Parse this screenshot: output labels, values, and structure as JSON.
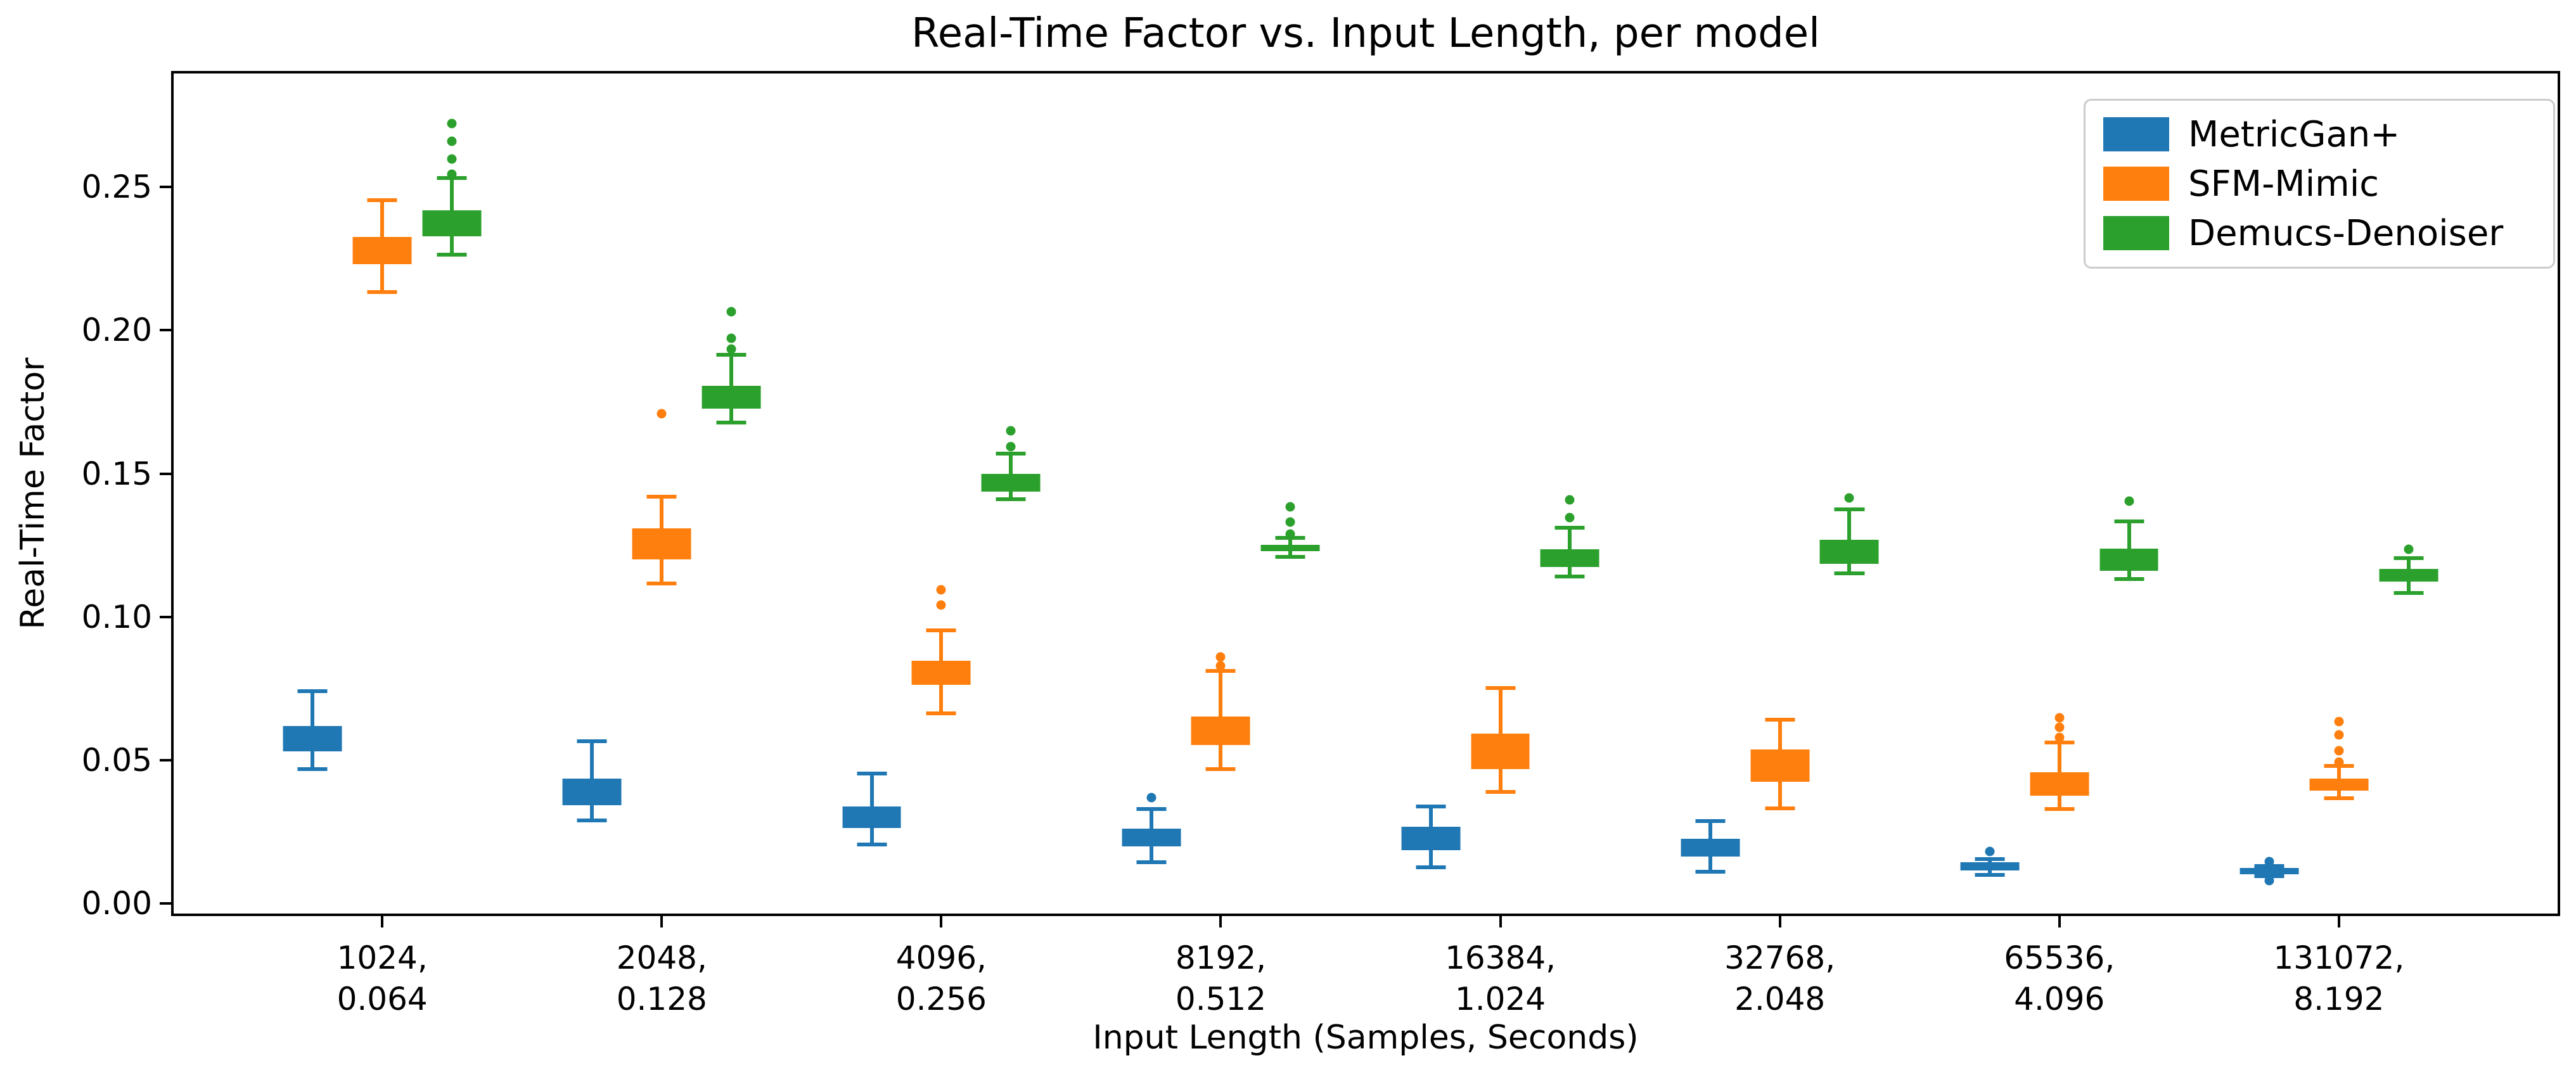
{
  "title": "Real-Time Factor vs. Input Length, per model",
  "axes": {
    "x_label": "Input Length (Samples, Seconds)",
    "y_label": "Real-Time Factor",
    "y_ticks": [
      {
        "label": "0.00",
        "value": 0.0
      },
      {
        "label": "0.05",
        "value": 0.05
      },
      {
        "label": "0.10",
        "value": 0.1
      },
      {
        "label": "0.15",
        "value": 0.15
      },
      {
        "label": "0.20",
        "value": 0.2
      },
      {
        "label": "0.25",
        "value": 0.25
      }
    ]
  },
  "legend": [
    {
      "label": "MetricGan+",
      "color": "#1f77b4"
    },
    {
      "label": "SFM-Mimic",
      "color": "#ff7f0e"
    },
    {
      "label": "Demucs-Denoiser",
      "color": "#2ca02c"
    }
  ],
  "chart_data": {
    "type": "boxplot",
    "title": "Real-Time Factor vs. Input Length, per model",
    "xlabel": "Input Length (Samples, Seconds)",
    "ylabel": "Real-Time Factor",
    "ylim": [
      -0.0035,
      0.2896
    ],
    "grid": false,
    "legend_position": "upper right",
    "categories": [
      {
        "samples": "1024",
        "seconds": "0.064",
        "label": "1024,\n0.064"
      },
      {
        "samples": "2048",
        "seconds": "0.128",
        "label": "2048,\n0.128"
      },
      {
        "samples": "4096",
        "seconds": "0.256",
        "label": "4096,\n0.256"
      },
      {
        "samples": "8192",
        "seconds": "0.512",
        "label": "8192,\n0.512"
      },
      {
        "samples": "16384",
        "seconds": "1.024",
        "label": "16384,\n1.024"
      },
      {
        "samples": "32768",
        "seconds": "2.048",
        "label": "32768,\n2.048"
      },
      {
        "samples": "65536",
        "seconds": "4.096",
        "label": "65536,\n4.096"
      },
      {
        "samples": "131072",
        "seconds": "8.192",
        "label": "131072,\n8.192"
      }
    ],
    "series": [
      {
        "name": "MetricGan+",
        "color": "#1f77b4",
        "boxes": [
          {
            "whislo": 0.047,
            "q1": 0.053,
            "q3": 0.062,
            "whishi": 0.074,
            "fliers": []
          },
          {
            "whislo": 0.029,
            "q1": 0.0343,
            "q3": 0.0435,
            "whishi": 0.0567,
            "fliers": []
          },
          {
            "whislo": 0.0207,
            "q1": 0.0264,
            "q3": 0.0338,
            "whishi": 0.0453,
            "fliers": []
          },
          {
            "whislo": 0.0145,
            "q1": 0.02,
            "q3": 0.0261,
            "whishi": 0.033,
            "fliers": [
              0.0369
            ]
          },
          {
            "whislo": 0.0127,
            "q1": 0.0185,
            "q3": 0.0268,
            "whishi": 0.0338,
            "fliers": []
          },
          {
            "whislo": 0.011,
            "q1": 0.0165,
            "q3": 0.0226,
            "whishi": 0.0288,
            "fliers": []
          },
          {
            "whislo": 0.01,
            "q1": 0.0116,
            "q3": 0.0145,
            "whishi": 0.0155,
            "fliers": [
              0.0182
            ]
          },
          {
            "whislo": 0.0095,
            "q1": 0.0101,
            "q3": 0.0125,
            "whishi": 0.013,
            "fliers": [
              0.0147,
              0.008
            ]
          }
        ]
      },
      {
        "name": "SFM-Mimic",
        "color": "#ff7f0e",
        "boxes": [
          {
            "whislo": 0.2134,
            "q1": 0.2231,
            "q3": 0.2326,
            "whishi": 0.2453,
            "fliers": []
          },
          {
            "whislo": 0.1116,
            "q1": 0.12,
            "q3": 0.1309,
            "whishi": 0.1419,
            "fliers": [
              0.1709
            ]
          },
          {
            "whislo": 0.0663,
            "q1": 0.0764,
            "q3": 0.0848,
            "whishi": 0.0953,
            "fliers": [
              0.1041,
              0.1094
            ]
          },
          {
            "whislo": 0.0468,
            "q1": 0.0553,
            "q3": 0.0652,
            "whishi": 0.0811,
            "fliers": [
              0.083,
              0.0861
            ]
          },
          {
            "whislo": 0.0389,
            "q1": 0.047,
            "q3": 0.0593,
            "whishi": 0.0751,
            "fliers": []
          },
          {
            "whislo": 0.0332,
            "q1": 0.0424,
            "q3": 0.0538,
            "whishi": 0.0641,
            "fliers": []
          },
          {
            "whislo": 0.033,
            "q1": 0.0376,
            "q3": 0.0459,
            "whishi": 0.0562,
            "fliers": [
              0.058,
              0.0615,
              0.0648
            ]
          },
          {
            "whislo": 0.0367,
            "q1": 0.0393,
            "q3": 0.0435,
            "whishi": 0.0479,
            "fliers": [
              0.0494,
              0.0534,
              0.0589,
              0.0635
            ]
          }
        ]
      },
      {
        "name": "Demucs-Denoiser",
        "color": "#2ca02c",
        "boxes": [
          {
            "whislo": 0.2264,
            "q1": 0.2327,
            "q3": 0.2418,
            "whishi": 0.2532,
            "fliers": [
              0.2545,
              0.2597,
              0.266,
              0.2722
            ]
          },
          {
            "whislo": 0.1677,
            "q1": 0.1727,
            "q3": 0.1806,
            "whishi": 0.1915,
            "fliers": [
              0.1935,
              0.1973,
              0.2065
            ]
          },
          {
            "whislo": 0.141,
            "q1": 0.1437,
            "q3": 0.15,
            "whishi": 0.157,
            "fliers": [
              0.1595,
              0.165
            ]
          },
          {
            "whislo": 0.1209,
            "q1": 0.123,
            "q3": 0.1252,
            "whishi": 0.1276,
            "fliers": [
              0.129,
              0.1331,
              0.1384
            ]
          },
          {
            "whislo": 0.1142,
            "q1": 0.1173,
            "q3": 0.1235,
            "whishi": 0.1312,
            "fliers": [
              0.1347,
              0.1409
            ]
          },
          {
            "whislo": 0.1151,
            "q1": 0.1186,
            "q3": 0.127,
            "whishi": 0.1375,
            "fliers": [
              0.1415
            ]
          },
          {
            "whislo": 0.1132,
            "q1": 0.116,
            "q3": 0.1239,
            "whishi": 0.1333,
            "fliers": [
              0.1405
            ]
          },
          {
            "whislo": 0.1083,
            "q1": 0.1123,
            "q3": 0.1167,
            "whishi": 0.1206,
            "fliers": [
              0.1235
            ]
          }
        ]
      }
    ]
  }
}
